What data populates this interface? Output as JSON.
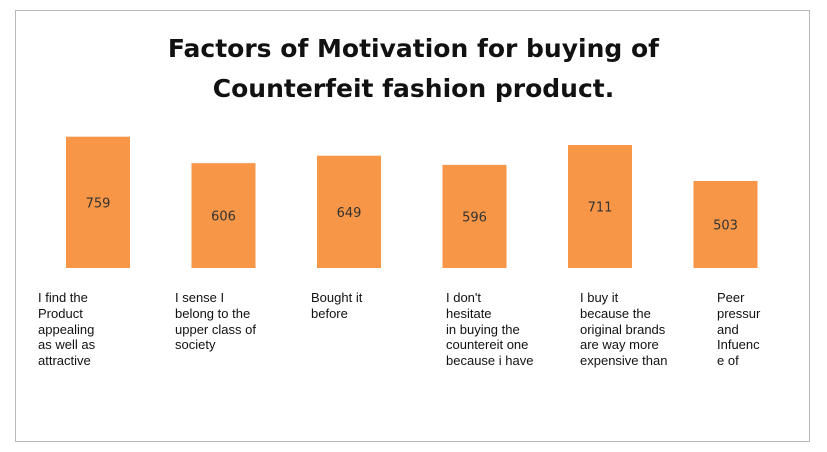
{
  "chart_data": {
    "type": "bar",
    "title": [
      "Factors of Motivation for buying of",
      "Counterfeit fashion product."
    ],
    "categories": [
      "I find the\nProduct\nappealing\nas well as\nattractive",
      "I sense I\nbelong to the\nupper class of\nsociety",
      "Bought it\nbefore",
      "I don't\nhesitate\nin buying the\ncountereit one\nbecause i have",
      "I buy it\nbecause the\noriginal brands\nare way more\nexpensive than",
      "Peer\npressur\nand\nInfuenc\ne of"
    ],
    "values": [
      759,
      606,
      649,
      596,
      711,
      503
    ],
    "data_labels": [
      "759",
      "606",
      "649",
      "596",
      "711",
      "503"
    ],
    "colors": {
      "bar": "#F79646",
      "label": "#333333"
    }
  }
}
